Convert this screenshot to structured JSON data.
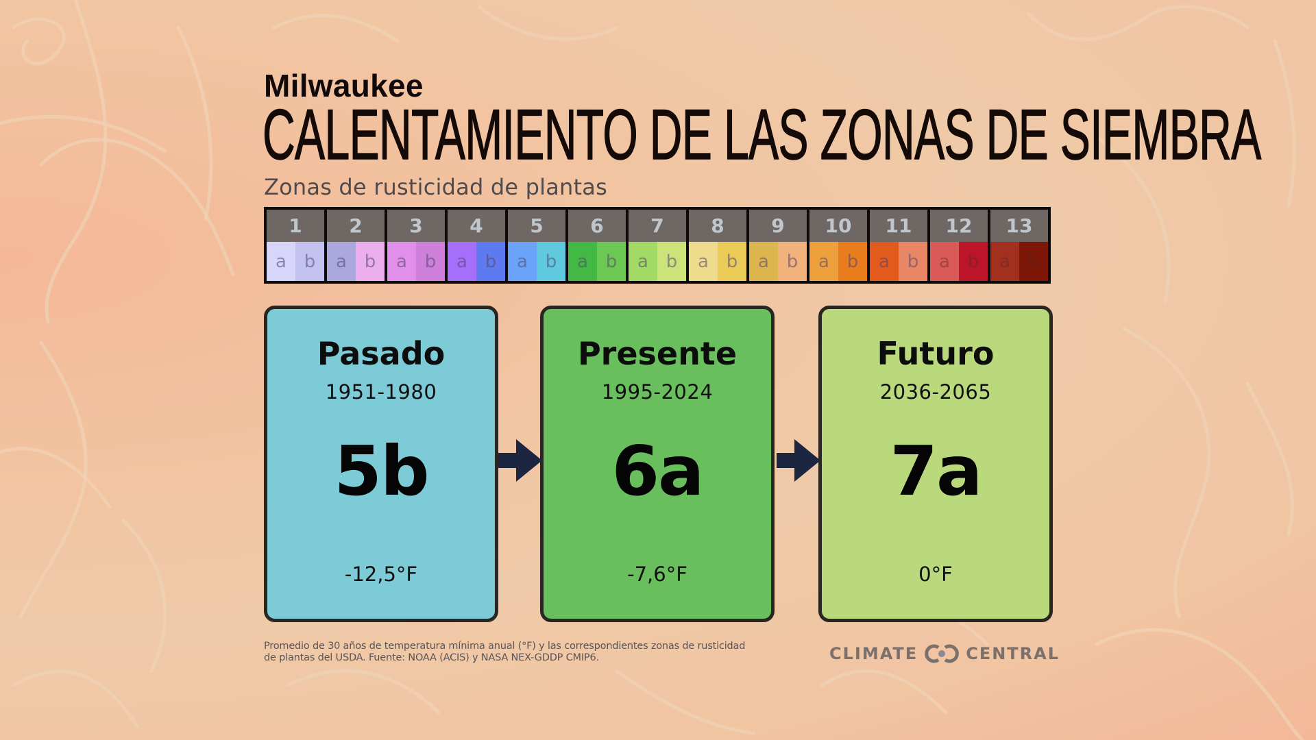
{
  "header": {
    "city": "Milwaukee",
    "title": "CALENTAMIENTO DE LAS ZONAS DE SIEMBRA",
    "subtitle": "Zonas de rusticidad de plantas"
  },
  "zone_scale": {
    "zones": [
      {
        "number": "1",
        "a": {
          "label": "a",
          "color": "#d8d5fb"
        },
        "b": {
          "label": "b",
          "color": "#c3c1ee"
        }
      },
      {
        "number": "2",
        "a": {
          "label": "a",
          "color": "#aaa8dc"
        },
        "b": {
          "label": "b",
          "color": "#edaeee"
        }
      },
      {
        "number": "3",
        "a": {
          "label": "a",
          "color": "#e08fea"
        },
        "b": {
          "label": "b",
          "color": "#cd7fda"
        }
      },
      {
        "number": "4",
        "a": {
          "label": "a",
          "color": "#a66ffb"
        },
        "b": {
          "label": "b",
          "color": "#5e7af0"
        }
      },
      {
        "number": "5",
        "a": {
          "label": "a",
          "color": "#6ba3f9"
        },
        "b": {
          "label": "b",
          "color": "#5fc9dd"
        }
      },
      {
        "number": "6",
        "a": {
          "label": "a",
          "color": "#44b845"
        },
        "b": {
          "label": "b",
          "color": "#6dc753"
        }
      },
      {
        "number": "7",
        "a": {
          "label": "a",
          "color": "#a3d965"
        },
        "b": {
          "label": "b",
          "color": "#cce37a"
        }
      },
      {
        "number": "8",
        "a": {
          "label": "a",
          "color": "#efdb8c"
        },
        "b": {
          "label": "b",
          "color": "#ecca57"
        }
      },
      {
        "number": "9",
        "a": {
          "label": "a",
          "color": "#dcb54f"
        },
        "b": {
          "label": "b",
          "color": "#f2b27b"
        }
      },
      {
        "number": "10",
        "a": {
          "label": "a",
          "color": "#eea03d"
        },
        "b": {
          "label": "b",
          "color": "#e97c1c"
        }
      },
      {
        "number": "11",
        "a": {
          "label": "a",
          "color": "#e35a1d"
        },
        "b": {
          "label": "b",
          "color": "#e88665"
        }
      },
      {
        "number": "12",
        "a": {
          "label": "a",
          "color": "#d95a56"
        },
        "b": {
          "label": "b",
          "color": "#bc1428"
        }
      },
      {
        "number": "13",
        "a": {
          "label": "a",
          "color": "#a3301f"
        },
        "b": {
          "label": "b",
          "color": "#7c1707"
        }
      }
    ]
  },
  "periods": [
    {
      "label": "Pasado",
      "years": "1951-1980",
      "zone": "5b",
      "temp": "-12,5°F",
      "color": "#7ecbd8"
    },
    {
      "label": "Presente",
      "years": "1995-2024",
      "zone": "6a",
      "temp": "-7,6°F",
      "color": "#69bf5d"
    },
    {
      "label": "Futuro",
      "years": "2036-2065",
      "zone": "7a",
      "temp": "0°F",
      "color": "#bad97c"
    }
  ],
  "arrows": {
    "color": "#1c2641"
  },
  "footer": {
    "note": "Promedio de 30 años de temperatura mínima anual (°F) y las correspondientes zonas de rusticidad de plantas del USDA. Fuente: NOAA (ACIS) y NASA NEX-GDDP CMIP6.",
    "logo_left": "CLIMATE",
    "logo_right": "CENTRAL"
  }
}
